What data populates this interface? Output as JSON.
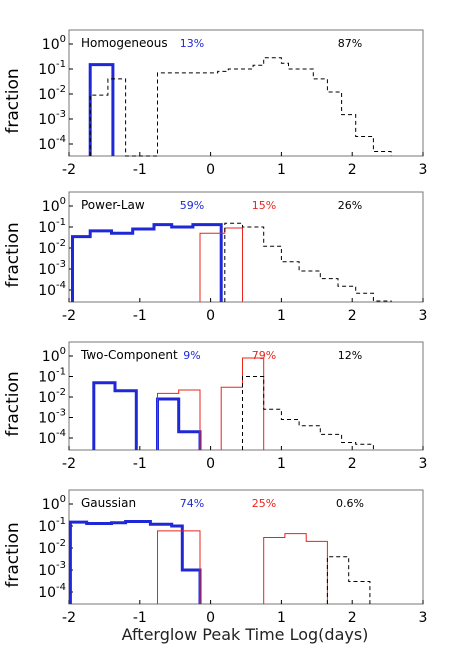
{
  "figure": {
    "xlabel": "Afterglow Peak Time  Log(days)",
    "ylabel": "fraction"
  },
  "colors": {
    "blue": "#1f28d6",
    "red": "#e8241c",
    "black": "#000000"
  },
  "chart_data": [
    {
      "type": "histogram",
      "title": "Homogeneous",
      "xlim": [
        -2,
        3
      ],
      "ylim_log10": [
        -5,
        0
      ],
      "xticks": [
        "-2",
        "-1",
        "0",
        "1",
        "2",
        "3"
      ],
      "yticks": [
        "10^0",
        "10^-1",
        "10^-2",
        "10^-3",
        "10^-4"
      ],
      "annotations": [
        {
          "text": "13%",
          "color": "blue"
        },
        {
          "text": "87%",
          "color": "black"
        }
      ],
      "series": [
        {
          "style": "blue-thick",
          "edges": [
            -1.7,
            -1.38
          ],
          "values": [
            0.15
          ]
        },
        {
          "style": "black-dashed",
          "edges": [
            -1.7,
            -1.45,
            -1.2,
            -0.75,
            0.1,
            0.25,
            0.6,
            0.75,
            1.0,
            1.1,
            1.45,
            1.65,
            1.85,
            2.05,
            2.3,
            2.55
          ],
          "values": [
            0.009,
            0.04,
            0.0,
            0.07,
            0.08,
            0.1,
            0.14,
            0.28,
            0.17,
            0.1,
            0.04,
            0.012,
            0.0015,
            0.0002,
            5e-05
          ]
        }
      ]
    },
    {
      "type": "histogram",
      "title": "Power-Law",
      "xlim": [
        -2,
        3
      ],
      "ylim_log10": [
        -5,
        0
      ],
      "xticks": [
        "-2",
        "-1",
        "0",
        "1",
        "2",
        "3"
      ],
      "yticks": [
        "10^0",
        "10^-1",
        "10^-2",
        "10^-3",
        "10^-4"
      ],
      "annotations": [
        {
          "text": "59%",
          "color": "blue"
        },
        {
          "text": "15%",
          "color": "red"
        },
        {
          "text": "26%",
          "color": "black"
        }
      ],
      "series": [
        {
          "style": "blue-thick",
          "edges": [
            -1.95,
            -1.7,
            -1.4,
            -1.1,
            -0.8,
            -0.55,
            -0.25,
            0.15
          ],
          "values": [
            0.035,
            0.065,
            0.05,
            0.08,
            0.13,
            0.1,
            0.13
          ]
        },
        {
          "style": "red-thin",
          "edges": [
            -0.15,
            0.2,
            0.45
          ],
          "values": [
            0.05,
            0.09
          ]
        },
        {
          "style": "black-dashed",
          "edges": [
            0.2,
            0.45,
            0.75,
            1.0,
            1.25,
            1.55,
            1.8,
            2.05,
            2.3,
            2.55
          ],
          "values": [
            0.15,
            0.1,
            0.012,
            0.0022,
            0.0008,
            0.00035,
            0.00015,
            7e-05,
            3e-05
          ]
        }
      ]
    },
    {
      "type": "histogram",
      "title": "Two-Component",
      "xlim": [
        -2,
        3
      ],
      "ylim_log10": [
        -5,
        0
      ],
      "xticks": [
        "-2",
        "-1",
        "0",
        "1",
        "2",
        "3"
      ],
      "yticks": [
        "10^0",
        "10^-1",
        "10^-2",
        "10^-3",
        "10^-4"
      ],
      "annotations": [
        {
          "text": "9%",
          "color": "blue"
        },
        {
          "text": "79%",
          "color": "red"
        },
        {
          "text": "12%",
          "color": "black"
        }
      ],
      "series": [
        {
          "style": "blue-thick",
          "edges": [
            -1.65,
            -1.35,
            -1.05
          ],
          "values": [
            0.05,
            0.02
          ]
        },
        {
          "style": "blue-thick",
          "edges": [
            -0.75,
            -0.45,
            -0.15
          ],
          "values": [
            0.008,
            0.0002
          ]
        },
        {
          "style": "red-thin",
          "edges": [
            -0.75,
            -0.45,
            -0.15
          ],
          "values": [
            0.015,
            0.022
          ]
        },
        {
          "style": "red-thin",
          "edges": [
            0.15,
            0.45,
            0.75
          ],
          "values": [
            0.03,
            0.8
          ]
        },
        {
          "style": "black-dashed",
          "edges": [
            0.45,
            0.75,
            1.0,
            1.25,
            1.55,
            1.85,
            2.05,
            2.3
          ],
          "values": [
            0.1,
            0.0025,
            0.0008,
            0.0004,
            0.00015,
            6e-05,
            5e-05
          ]
        }
      ]
    },
    {
      "type": "histogram",
      "title": "Gaussian",
      "xlim": [
        -2,
        3
      ],
      "ylim_log10": [
        -5,
        0
      ],
      "xticks": [
        "-2",
        "-1",
        "0",
        "1",
        "2",
        "3"
      ],
      "yticks": [
        "10^0",
        "10^-1",
        "10^-2",
        "10^-3",
        "10^-4"
      ],
      "annotations": [
        {
          "text": "74%",
          "color": "blue"
        },
        {
          "text": "25%",
          "color": "red"
        },
        {
          "text": "0.6%",
          "color": "black"
        }
      ],
      "series": [
        {
          "style": "blue-thick",
          "edges": [
            -1.98,
            -1.75,
            -1.4,
            -1.2,
            -0.85,
            -0.55,
            -0.4,
            -0.15
          ],
          "values": [
            0.15,
            0.13,
            0.14,
            0.16,
            0.12,
            0.1,
            0.001
          ]
        },
        {
          "style": "red-thin",
          "edges": [
            -0.75,
            -0.15
          ],
          "values": [
            0.06
          ]
        },
        {
          "style": "red-thin",
          "edges": [
            0.75,
            1.05,
            1.35,
            1.65
          ],
          "values": [
            0.03,
            0.045,
            0.02
          ]
        },
        {
          "style": "black-dashed",
          "edges": [
            1.65,
            1.95,
            2.25
          ],
          "values": [
            0.004,
            0.0003
          ]
        }
      ]
    }
  ]
}
